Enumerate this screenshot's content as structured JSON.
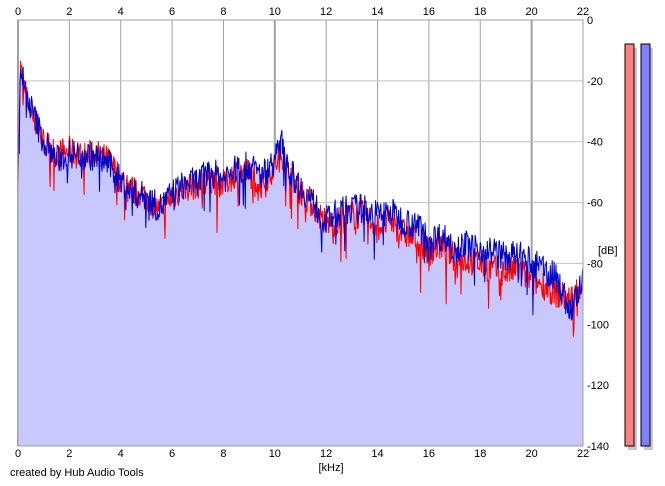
{
  "credit": "created by Hub Audio Tools",
  "chart_data": {
    "type": "area",
    "xlabel": "[kHz]",
    "ylabel": "[dB]",
    "xlim": [
      0,
      22
    ],
    "ylim": [
      -140,
      0
    ],
    "x_ticks": [
      "0",
      "2",
      "4",
      "6",
      "8",
      "10",
      "12",
      "14",
      "16",
      "18",
      "20",
      "22"
    ],
    "y_ticks": [
      "0",
      "-20",
      "-40",
      "-60",
      "-80",
      "-100",
      "-120",
      "-140"
    ],
    "grid": true,
    "series": [
      {
        "color": "#ff0000",
        "points": [
          [
            0,
            -50
          ],
          [
            0.1,
            -16
          ],
          [
            0.3,
            -25
          ],
          [
            0.6,
            -32
          ],
          [
            1,
            -40
          ],
          [
            1.5,
            -44
          ],
          [
            2,
            -43
          ],
          [
            2.5,
            -45
          ],
          [
            3,
            -44
          ],
          [
            3.5,
            -46
          ],
          [
            4,
            -52
          ],
          [
            4.5,
            -56
          ],
          [
            5,
            -58
          ],
          [
            5.5,
            -63
          ],
          [
            6,
            -58
          ],
          [
            6.5,
            -55
          ],
          [
            7,
            -54
          ],
          [
            7.5,
            -52
          ],
          [
            8,
            -54
          ],
          [
            8.5,
            -50
          ],
          [
            9,
            -50
          ],
          [
            9.5,
            -54
          ],
          [
            10,
            -48
          ],
          [
            10.3,
            -44
          ],
          [
            10.6,
            -50
          ],
          [
            11,
            -56
          ],
          [
            11.5,
            -61
          ],
          [
            12,
            -67
          ],
          [
            12.5,
            -66
          ],
          [
            13,
            -64
          ],
          [
            13.5,
            -64
          ],
          [
            14,
            -68
          ],
          [
            14.5,
            -66
          ],
          [
            15,
            -70
          ],
          [
            15.5,
            -72
          ],
          [
            16,
            -76
          ],
          [
            16.5,
            -74
          ],
          [
            17,
            -78
          ],
          [
            17.5,
            -79
          ],
          [
            18,
            -80
          ],
          [
            18.5,
            -82
          ],
          [
            19,
            -83
          ],
          [
            19.5,
            -82
          ],
          [
            20,
            -86
          ],
          [
            20.5,
            -87
          ],
          [
            21,
            -90
          ],
          [
            21.5,
            -92
          ],
          [
            22,
            -86
          ]
        ]
      },
      {
        "color": "#0000cc",
        "points": [
          [
            0,
            -48
          ],
          [
            0.1,
            -15
          ],
          [
            0.3,
            -24
          ],
          [
            0.6,
            -31
          ],
          [
            1,
            -40
          ],
          [
            1.5,
            -46
          ],
          [
            2,
            -44
          ],
          [
            2.5,
            -44
          ],
          [
            3,
            -45
          ],
          [
            3.5,
            -47
          ],
          [
            4,
            -53
          ],
          [
            4.5,
            -57
          ],
          [
            5,
            -58
          ],
          [
            5.5,
            -62
          ],
          [
            6,
            -57
          ],
          [
            6.5,
            -54
          ],
          [
            7,
            -53
          ],
          [
            7.5,
            -50
          ],
          [
            8,
            -52
          ],
          [
            8.5,
            -49
          ],
          [
            9,
            -48
          ],
          [
            9.5,
            -51
          ],
          [
            10,
            -46
          ],
          [
            10.3,
            -40
          ],
          [
            10.6,
            -50
          ],
          [
            11,
            -55
          ],
          [
            11.5,
            -60
          ],
          [
            12,
            -66
          ],
          [
            12.5,
            -63
          ],
          [
            13,
            -62
          ],
          [
            13.5,
            -62
          ],
          [
            14,
            -64
          ],
          [
            14.5,
            -63
          ],
          [
            15,
            -66
          ],
          [
            15.5,
            -67
          ],
          [
            16,
            -72
          ],
          [
            16.5,
            -71
          ],
          [
            17,
            -74
          ],
          [
            17.5,
            -74
          ],
          [
            18,
            -75
          ],
          [
            18.5,
            -76
          ],
          [
            19,
            -78
          ],
          [
            19.5,
            -77
          ],
          [
            20,
            -80
          ],
          [
            20.5,
            -82
          ],
          [
            21,
            -85
          ],
          [
            21.5,
            -96
          ],
          [
            22,
            -86
          ]
        ]
      }
    ],
    "fill_color": "#c8c8ff",
    "level_meters": [
      {
        "color": "#ff8080",
        "level": 1.0
      },
      {
        "color": "#8080ff",
        "level": 1.0
      }
    ]
  }
}
